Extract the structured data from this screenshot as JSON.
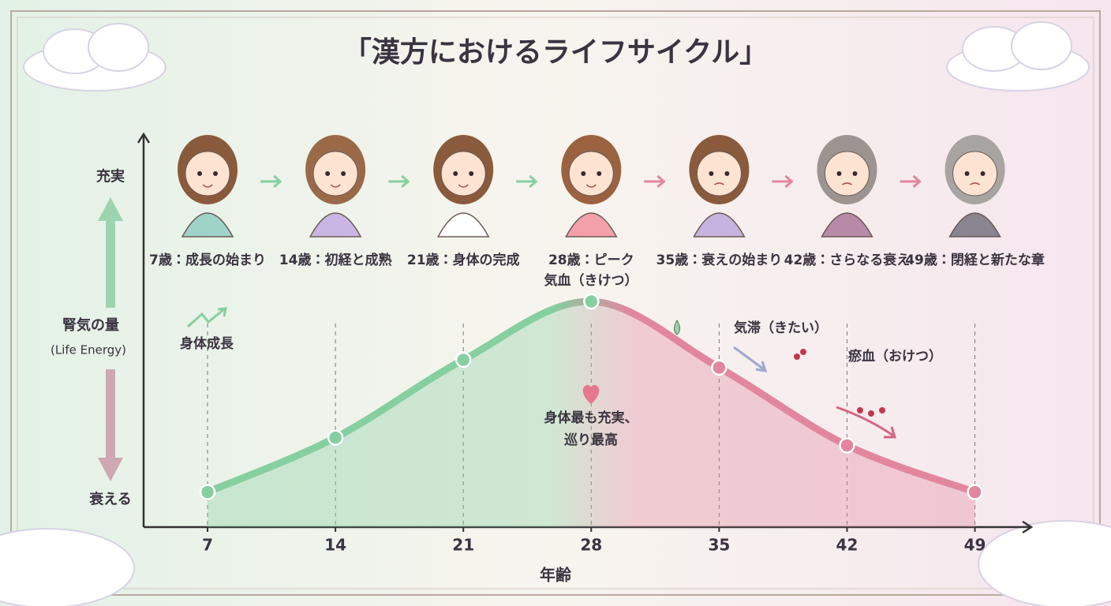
{
  "chart_data": {
    "type": "line",
    "title": "「漢方におけるライフサイクル」",
    "x_label": "年齢",
    "y_label": "腎気の量",
    "y_sublabel": "(Life Energy)",
    "x": [
      7,
      14,
      21,
      28,
      35,
      42,
      49
    ],
    "xlim": [
      3.5,
      52
    ],
    "xticks": [
      7,
      14,
      21,
      28,
      35,
      42,
      49
    ],
    "ylim": [
      0,
      100
    ],
    "yticks": [
      {
        "value": 7,
        "label": "衰える"
      },
      {
        "value": 90,
        "label": "充実"
      }
    ],
    "series": [
      {
        "color": "#86cfa0",
        "color2": "#e2869e",
        "values": [
          9,
          23,
          43,
          58,
          41,
          21,
          9
        ]
      }
    ],
    "stage_labels": [
      "7歳：成長の始まり",
      "14歳：初経と成熟",
      "21歳：身体の完成",
      "28歳：ピーク",
      "35歳：衰えの始まり",
      "42歳：さらなる衰え",
      "49歳：閉経と新たな章"
    ],
    "annotations": [
      "身体成長",
      "気血（きけつ）",
      "気滞（きたい）",
      "瘀血（おけつ）",
      "身体最も充実、",
      "巡り最高"
    ],
    "grid": true
  }
}
